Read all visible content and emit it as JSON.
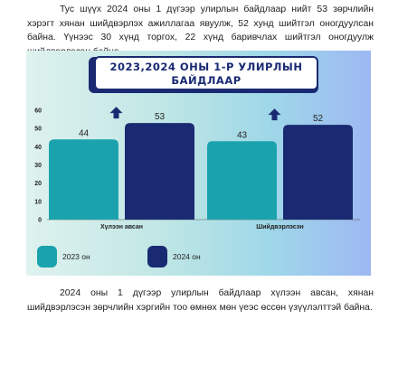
{
  "paragraph_top": "Тус шүүх 2024 оны 1 дүгээр улирлын байдлаар нийт 53 зөрчлийн хэрэгт хянан шийдвэрлэх ажиллагаа явуулж, 52 хунд шийтгэл оногдуулсан байна. Үүнээс 30 хүнд торгох, 22 хүнд баривчлах шийтгэл оногдуулж шийдвэрлэсэн байна.",
  "paragraph_bottom": "2024 оны 1 дүгээр улирлын байдлаар хүлээн авсан, хянан шийдвэрлэсэн зөрчлийн хэргийн тоо өмнөх мөн үеэс өссөн үзүүлэлттэй байна.",
  "chart_title_line1": "2023,2024 ОНЫ 1-Р УЛИРЛЫН",
  "chart_title_line2": "БАЙДЛААР",
  "colors": {
    "series_2023": "#1ba3ad",
    "series_2024": "#1a2a72",
    "arrow": "#1a2a72"
  },
  "chart_data": {
    "type": "bar",
    "title": "2023,2024 ОНЫ 1-Р УЛИРЛЫН БАЙДЛААР",
    "categories": [
      "Хүлээн авсан",
      "Шийдвэрлэсэн"
    ],
    "series": [
      {
        "name": "2023 он",
        "values": [
          44,
          43
        ]
      },
      {
        "name": "2024 он",
        "values": [
          53,
          52
        ]
      }
    ],
    "ylim": [
      0,
      60
    ],
    "yticks": [
      0,
      10,
      20,
      30,
      40,
      50,
      60
    ],
    "grid": false,
    "legend": "bottom-left",
    "annotations": [
      "up-arrow-icon above 2024 bars"
    ]
  }
}
